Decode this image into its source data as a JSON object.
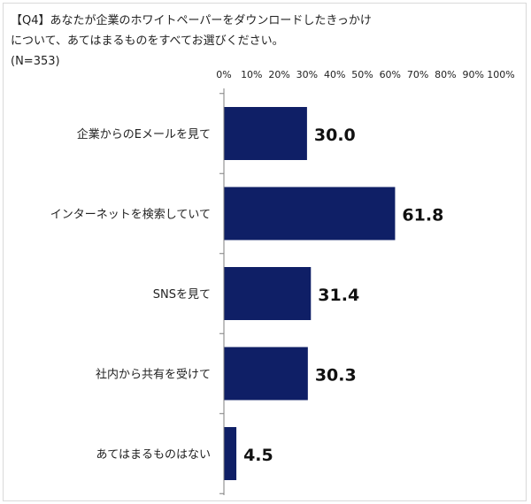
{
  "title": {
    "line1": "【Q4】あなたが企業のホワイトペーパーをダウンロードしたきっかけ",
    "line2": "について、あてはまるものをすべてお選びください。",
    "line3": "(N=353)"
  },
  "colors": {
    "bar": "#0f1f66",
    "axis": "#7f7f7f",
    "border": "#d9d9d9"
  },
  "chart_data": {
    "type": "bar",
    "orientation": "horizontal",
    "categories": [
      "企業からのEメールを見て",
      "インターネットを検索していて",
      "SNSを見て",
      "社内から共有を受けて",
      "あてはまるものはない"
    ],
    "values": [
      30.0,
      61.8,
      31.4,
      30.3,
      4.5
    ],
    "value_labels": [
      "30.0",
      "61.8",
      "31.4",
      "30.3",
      "4.5"
    ],
    "xlim": [
      0,
      100
    ],
    "x_ticks": [
      0,
      10,
      20,
      30,
      40,
      50,
      60,
      70,
      80,
      90,
      100
    ],
    "x_tick_labels": [
      "0%",
      "10%",
      "20%",
      "30%",
      "40%",
      "50%",
      "60%",
      "70%",
      "80%",
      "90%",
      "100%"
    ],
    "x_axis_position": "top",
    "grid": false,
    "legend": "none"
  }
}
